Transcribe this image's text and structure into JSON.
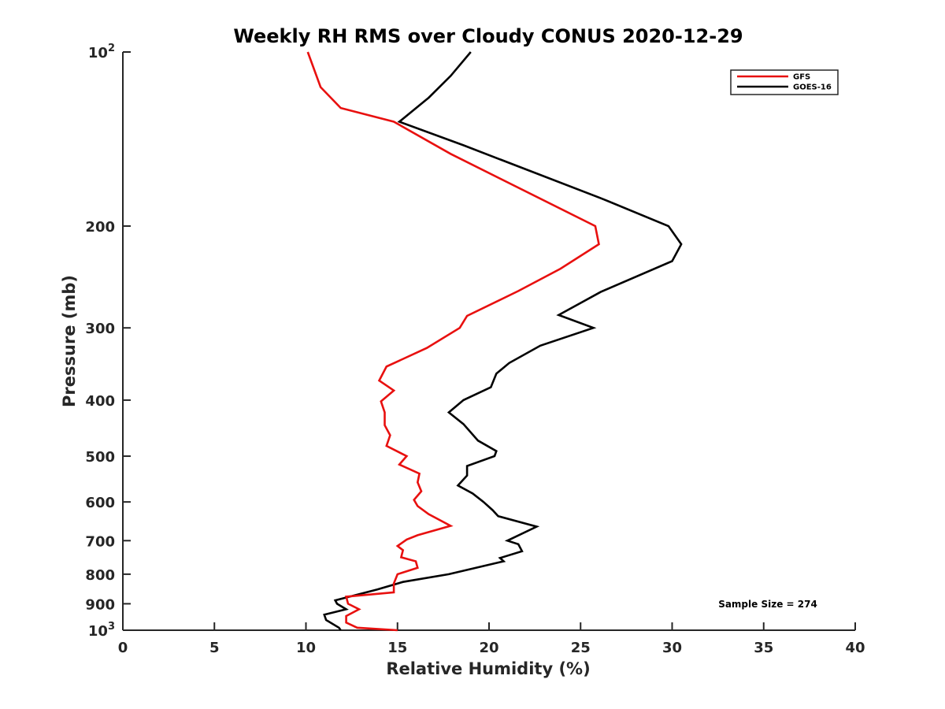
{
  "chart_data": {
    "type": "line",
    "title": "Weekly RH RMS over Cloudy CONUS 2020-12-29",
    "xlabel": "Relative Humidity (%)",
    "ylabel": "Pressure (mb)",
    "xlim": [
      0,
      40
    ],
    "ylim": [
      100,
      1000
    ],
    "yscale": "log",
    "y_reversed": true,
    "grid": false,
    "legend_position": "top-right",
    "xticks": [
      0,
      5,
      10,
      15,
      20,
      25,
      30,
      35,
      40
    ],
    "xtick_labels": [
      "0",
      "5",
      "10",
      "15",
      "20",
      "25",
      "30",
      "35",
      "40"
    ],
    "yticks": [
      100,
      200,
      300,
      400,
      500,
      600,
      700,
      800,
      900,
      1000
    ],
    "ytick_labels": [
      {
        "base": "10",
        "sup": "2"
      },
      {
        "base": "200",
        "sup": ""
      },
      {
        "base": "300",
        "sup": ""
      },
      {
        "base": "400",
        "sup": ""
      },
      {
        "base": "500",
        "sup": ""
      },
      {
        "base": "600",
        "sup": ""
      },
      {
        "base": "700",
        "sup": ""
      },
      {
        "base": "800",
        "sup": ""
      },
      {
        "base": "900",
        "sup": ""
      },
      {
        "base": "10",
        "sup": "3"
      }
    ],
    "annotation": "Sample Size = 274",
    "series": [
      {
        "name": "GFS",
        "color": "#e8100f",
        "points": [
          [
            10.1,
            100
          ],
          [
            10.8,
            115
          ],
          [
            11.9,
            125
          ],
          [
            14.8,
            132
          ],
          [
            17.9,
            150
          ],
          [
            25.8,
            200
          ],
          [
            26.0,
            215
          ],
          [
            23.9,
            237
          ],
          [
            21.6,
            259
          ],
          [
            18.8,
            286
          ],
          [
            18.4,
            300
          ],
          [
            16.6,
            325
          ],
          [
            14.4,
            350
          ],
          [
            14.0,
            370
          ],
          [
            14.8,
            385
          ],
          [
            14.1,
            402
          ],
          [
            14.3,
            420
          ],
          [
            14.3,
            442
          ],
          [
            14.6,
            460
          ],
          [
            14.4,
            480
          ],
          [
            15.5,
            500
          ],
          [
            15.1,
            517
          ],
          [
            16.2,
            536
          ],
          [
            16.1,
            555
          ],
          [
            16.3,
            575
          ],
          [
            15.9,
            595
          ],
          [
            16.1,
            610
          ],
          [
            16.7,
            630
          ],
          [
            17.9,
            660
          ],
          [
            16.1,
            685
          ],
          [
            15.5,
            697
          ],
          [
            15.0,
            715
          ],
          [
            15.3,
            727
          ],
          [
            15.2,
            748
          ],
          [
            16.0,
            760
          ],
          [
            16.1,
            780
          ],
          [
            15.0,
            800
          ],
          [
            14.8,
            830
          ],
          [
            14.8,
            860
          ],
          [
            12.2,
            875
          ],
          [
            12.3,
            900
          ],
          [
            12.9,
            920
          ],
          [
            12.2,
            945
          ],
          [
            12.2,
            970
          ],
          [
            12.8,
            990
          ],
          [
            15.0,
            1000
          ]
        ]
      },
      {
        "name": "GOES-16",
        "color": "#000000",
        "points": [
          [
            19.0,
            100
          ],
          [
            17.9,
            110
          ],
          [
            16.7,
            120
          ],
          [
            15.1,
            132
          ],
          [
            18.6,
            145
          ],
          [
            26.3,
            180
          ],
          [
            29.8,
            200
          ],
          [
            30.5,
            215
          ],
          [
            30.0,
            230
          ],
          [
            26.1,
            260
          ],
          [
            23.8,
            285
          ],
          [
            25.7,
            300
          ],
          [
            22.8,
            322
          ],
          [
            21.1,
            345
          ],
          [
            20.4,
            360
          ],
          [
            20.1,
            380
          ],
          [
            18.6,
            400
          ],
          [
            17.8,
            420
          ],
          [
            18.6,
            440
          ],
          [
            19.4,
            470
          ],
          [
            20.4,
            490
          ],
          [
            20.3,
            500
          ],
          [
            18.8,
            520
          ],
          [
            18.8,
            540
          ],
          [
            18.3,
            562
          ],
          [
            19.1,
            580
          ],
          [
            19.7,
            600
          ],
          [
            20.2,
            620
          ],
          [
            20.5,
            635
          ],
          [
            22.6,
            662
          ],
          [
            21.0,
            700
          ],
          [
            21.6,
            710
          ],
          [
            21.8,
            730
          ],
          [
            20.6,
            750
          ],
          [
            20.8,
            760
          ],
          [
            17.8,
            800
          ],
          [
            15.3,
            825
          ],
          [
            13.9,
            850
          ],
          [
            11.6,
            888
          ],
          [
            11.7,
            900
          ],
          [
            12.2,
            920
          ],
          [
            11.0,
            940
          ],
          [
            11.1,
            960
          ],
          [
            11.8,
            990
          ],
          [
            11.9,
            1000
          ]
        ]
      }
    ]
  }
}
